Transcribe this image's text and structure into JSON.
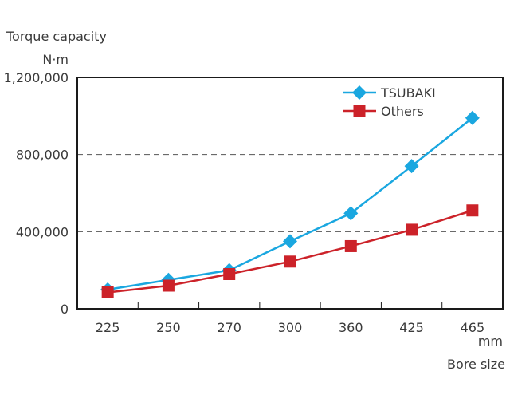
{
  "chart_data": {
    "type": "line",
    "title": "",
    "ylabel": "Torque capacity",
    "yunit": "N·m",
    "xlabel": "Bore size",
    "xunit": "mm",
    "categories": [
      "225",
      "250",
      "270",
      "300",
      "360",
      "425",
      "465"
    ],
    "ylim": [
      0,
      1200000
    ],
    "yticks": [
      0,
      400000,
      800000,
      1200000
    ],
    "ytick_labels": [
      "0",
      "400,000",
      "800,000",
      "1,200,000"
    ],
    "grid": "horizontal dashed at 400,000 and 800,000",
    "legend_position": "top-right",
    "series": [
      {
        "name": "TSUBAKI",
        "marker": "diamond",
        "color": "#1aa7e0",
        "values": [
          100000,
          150000,
          200000,
          350000,
          495000,
          740000,
          990000
        ]
      },
      {
        "name": "Others",
        "marker": "square",
        "color": "#cc2229",
        "values": [
          85000,
          120000,
          180000,
          245000,
          325000,
          410000,
          510000
        ]
      }
    ]
  }
}
